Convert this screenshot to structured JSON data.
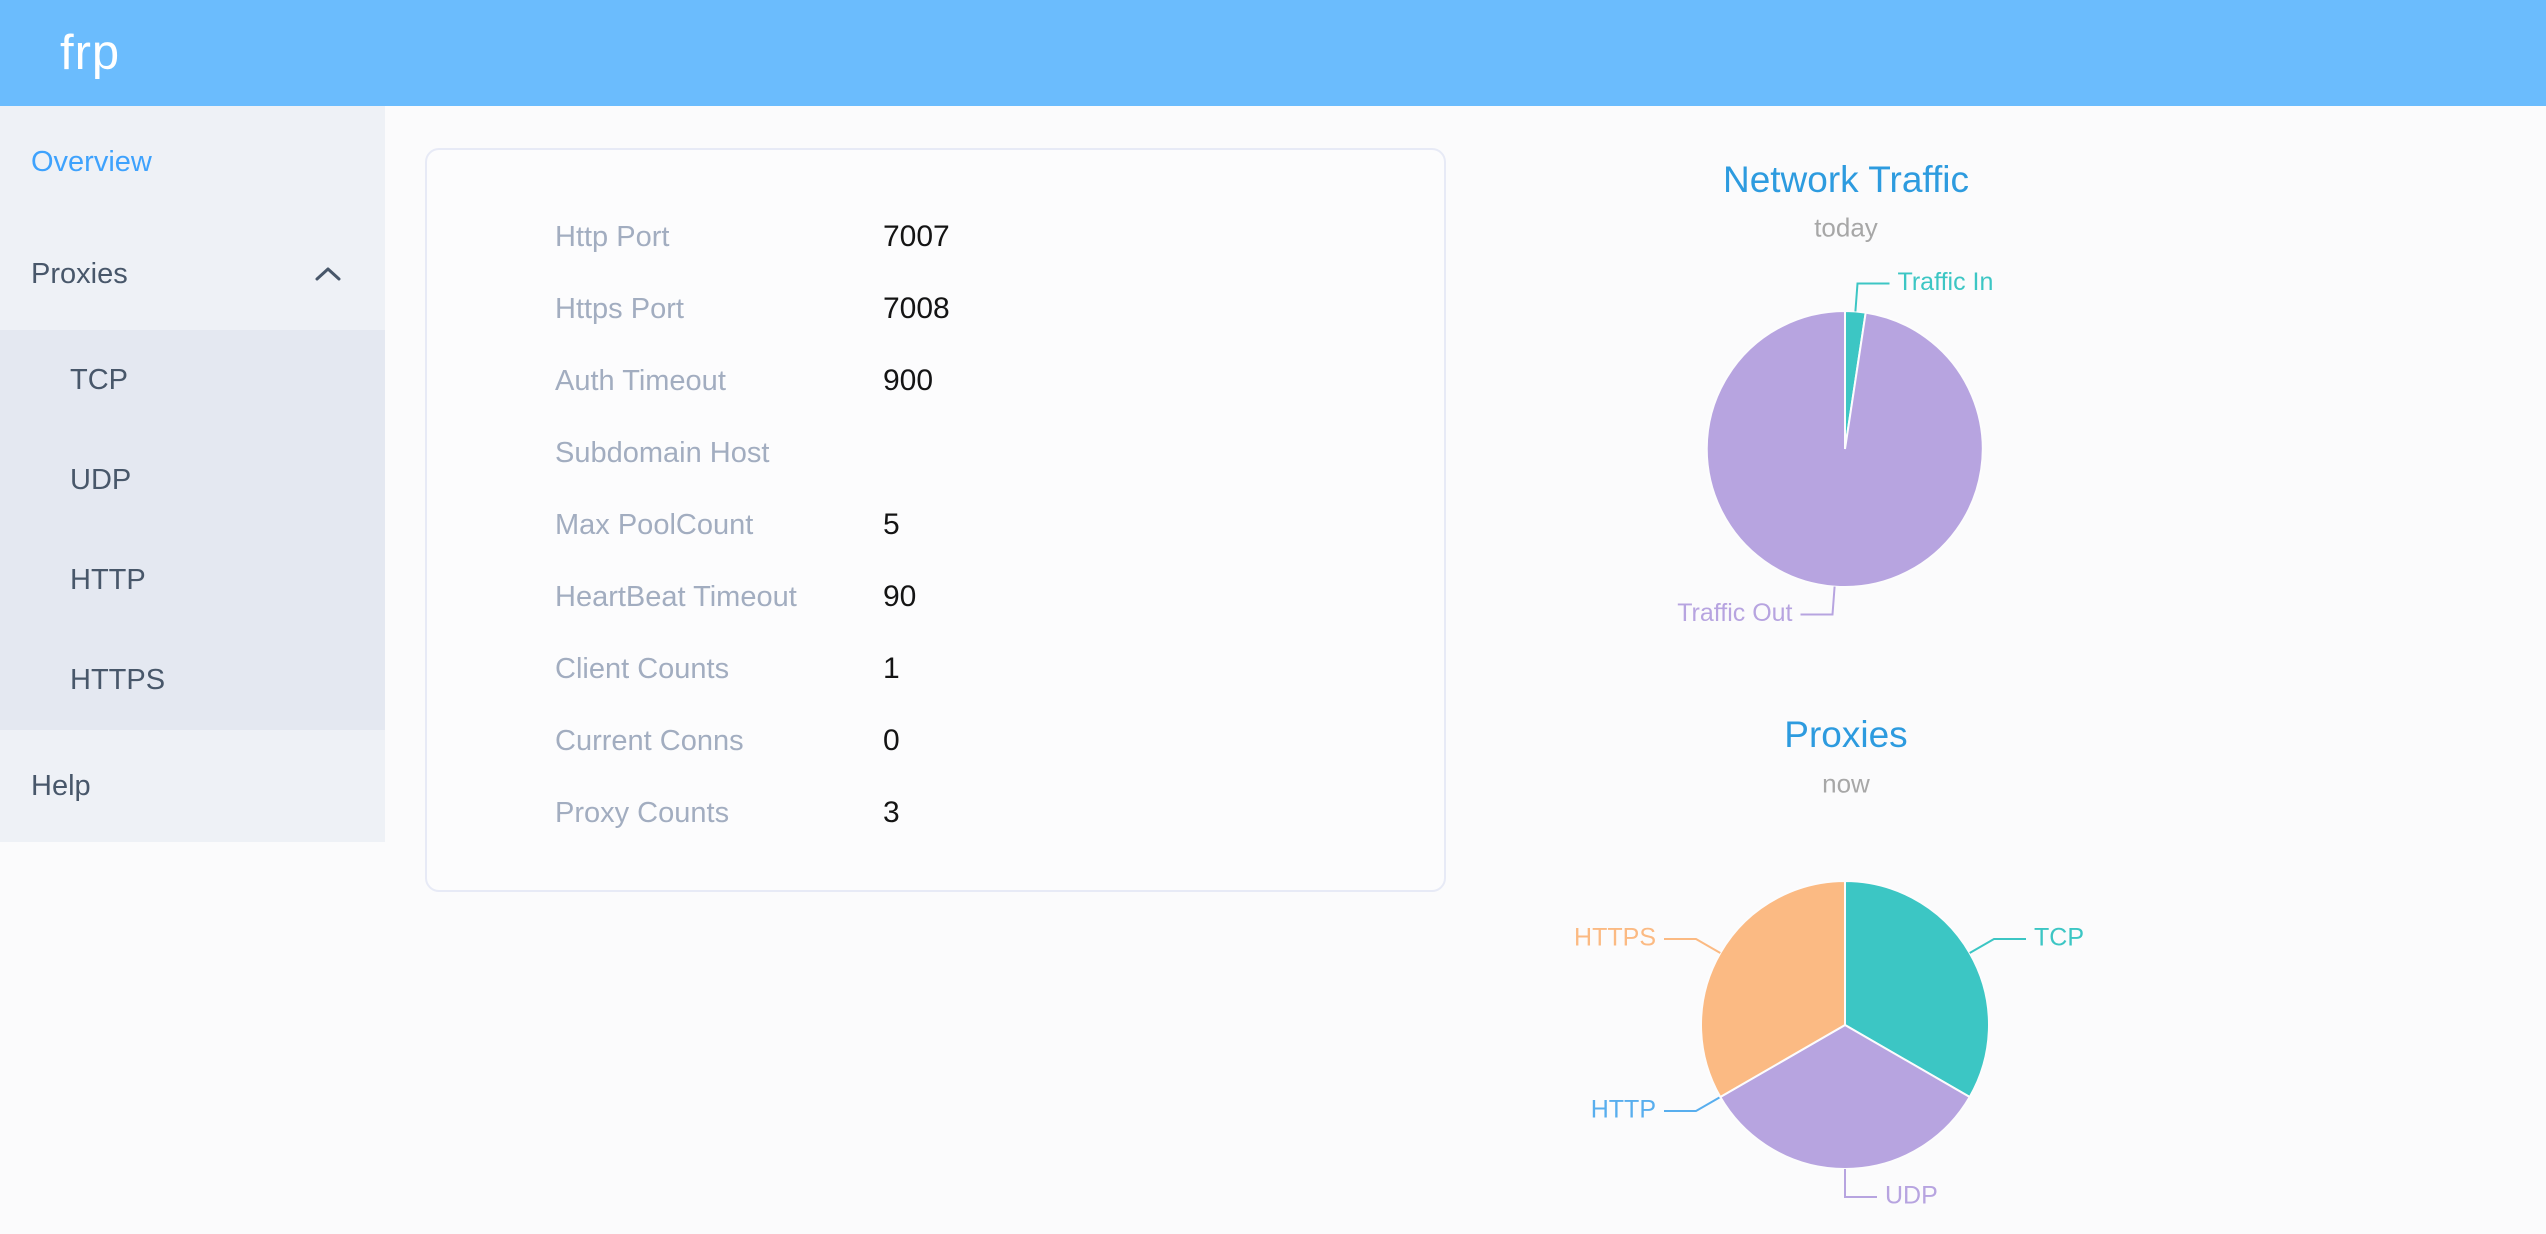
{
  "header": {
    "logo": "frp"
  },
  "sidebar": {
    "items": [
      {
        "label": "Overview",
        "active": true
      },
      {
        "label": "Proxies",
        "expanded": true,
        "children": [
          {
            "label": "TCP"
          },
          {
            "label": "UDP"
          },
          {
            "label": "HTTP"
          },
          {
            "label": "HTTPS"
          }
        ]
      },
      {
        "label": "Help"
      }
    ]
  },
  "overview_card": {
    "rows": [
      {
        "label": "Http Port",
        "value": "7007"
      },
      {
        "label": "Https Port",
        "value": "7008"
      },
      {
        "label": "Auth Timeout",
        "value": "900"
      },
      {
        "label": "Subdomain Host",
        "value": ""
      },
      {
        "label": "Max PoolCount",
        "value": "5"
      },
      {
        "label": "HeartBeat Timeout",
        "value": "90"
      },
      {
        "label": "Client Counts",
        "value": "1"
      },
      {
        "label": "Current Conns",
        "value": "0"
      },
      {
        "label": "Proxy Counts",
        "value": "3"
      }
    ]
  },
  "chart_data": [
    {
      "type": "pie",
      "title": "Network Traffic",
      "subtitle": "today",
      "legend_position": "none",
      "start_angle": 90,
      "direction": "clockwise",
      "unit": "percent (estimated from arc angles)",
      "series": [
        {
          "name": "Traffic In",
          "value": 2.4,
          "color": "#3cc6c4"
        },
        {
          "name": "Traffic Out",
          "value": 97.6,
          "color": "#b7a4e0"
        }
      ]
    },
    {
      "type": "pie",
      "title": "Proxies",
      "subtitle": "now",
      "legend_position": "none",
      "start_angle": 90,
      "direction": "clockwise",
      "unit": "proxy count",
      "series": [
        {
          "name": "TCP",
          "value": 1,
          "color": "#3cc6c4"
        },
        {
          "name": "UDP",
          "value": 1,
          "color": "#b7a4e0"
        },
        {
          "name": "HTTP",
          "value": 0,
          "color": "#58aeee"
        },
        {
          "name": "HTTPS",
          "value": 1,
          "color": "#fbba83"
        }
      ]
    }
  ]
}
